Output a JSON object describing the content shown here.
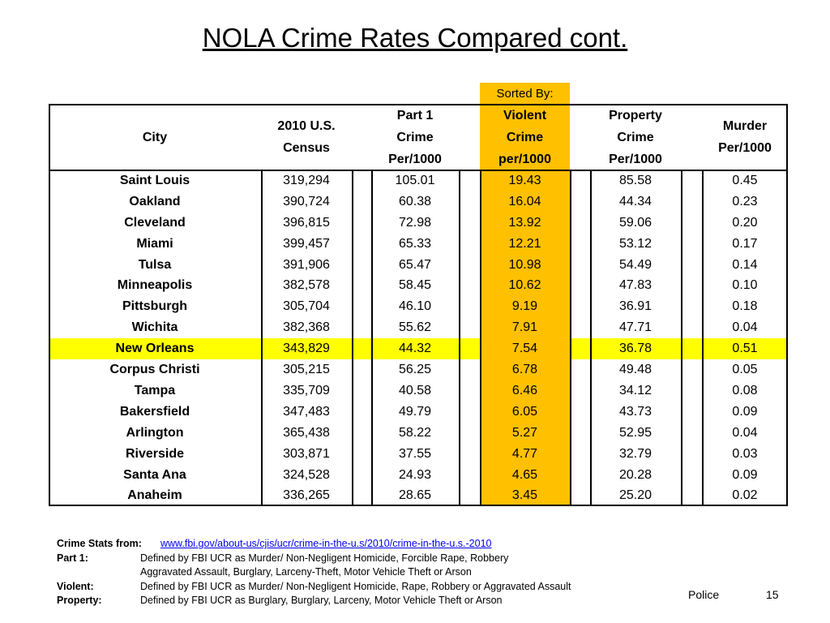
{
  "title": "NOLA Crime Rates Compared cont.",
  "sorted_by": "Sorted By:",
  "table": {
    "headers": [
      [
        "City"
      ],
      [
        "2010 U.S.",
        "Census"
      ],
      [
        "Part 1",
        "Crime",
        "Per/1000"
      ],
      [
        "Violent",
        "Crime",
        "per/1000"
      ],
      [
        "Property",
        "Crime",
        "Per/1000"
      ],
      [
        "Murder",
        "Per/1000"
      ]
    ],
    "rows": [
      [
        "Saint Louis",
        "319,294",
        "105.01",
        "19.43",
        "85.58",
        "0.45"
      ],
      [
        "Oakland",
        "390,724",
        "60.38",
        "16.04",
        "44.34",
        "0.23"
      ],
      [
        "Cleveland",
        "396,815",
        "72.98",
        "13.92",
        "59.06",
        "0.20"
      ],
      [
        "Miami",
        "399,457",
        "65.33",
        "12.21",
        "53.12",
        "0.17"
      ],
      [
        "Tulsa",
        "391,906",
        "65.47",
        "10.98",
        "54.49",
        "0.14"
      ],
      [
        "Minneapolis",
        "382,578",
        "58.45",
        "10.62",
        "47.83",
        "0.10"
      ],
      [
        "Pittsburgh",
        "305,704",
        "46.10",
        "9.19",
        "36.91",
        "0.18"
      ],
      [
        "Wichita",
        "382,368",
        "55.62",
        "7.91",
        "47.71",
        "0.04"
      ],
      [
        "New Orleans",
        "343,829",
        "44.32",
        "7.54",
        "36.78",
        "0.51"
      ],
      [
        "Corpus Christi",
        "305,215",
        "56.25",
        "6.78",
        "49.48",
        "0.05"
      ],
      [
        "Tampa",
        "335,709",
        "40.58",
        "6.46",
        "34.12",
        "0.08"
      ],
      [
        "Bakersfield",
        "347,483",
        "49.79",
        "6.05",
        "43.73",
        "0.09"
      ],
      [
        "Arlington",
        "365,438",
        "58.22",
        "5.27",
        "52.95",
        "0.04"
      ],
      [
        "Riverside",
        "303,871",
        "37.55",
        "4.77",
        "32.79",
        "0.03"
      ],
      [
        "Santa Ana",
        "324,528",
        "24.93",
        "4.65",
        "20.28",
        "0.09"
      ],
      [
        "Anaheim",
        "336,265",
        "28.65",
        "3.45",
        "25.20",
        "0.02"
      ]
    ]
  },
  "notes": {
    "source_label": "Crime Stats from:",
    "source_link": "www.fbi.gov/about-us/cjis/ucr/crime-in-the-u.s/2010/crime-in-the-u.s.-2010",
    "definitions": [
      {
        "label": "Part 1:",
        "lines": [
          "Defined by FBI UCR as Murder/ Non-Negligent Homicide, Forcible Rape, Robbery",
          "Aggravated Assault, Burglary, Larceny-Theft, Motor Vehicle Theft or Arson"
        ]
      },
      {
        "label": "Violent:",
        "lines": [
          "Defined by FBI UCR as Murder/ Non-Negligent Homicide, Rape, Robbery or Aggravated Assault"
        ]
      },
      {
        "label": "Property:",
        "lines": [
          "Defined by FBI UCR as Burglary, Burglary, Larceny, Motor Vehicle Theft or Arson"
        ]
      }
    ]
  },
  "footer": {
    "section": "Police",
    "page": "15"
  }
}
